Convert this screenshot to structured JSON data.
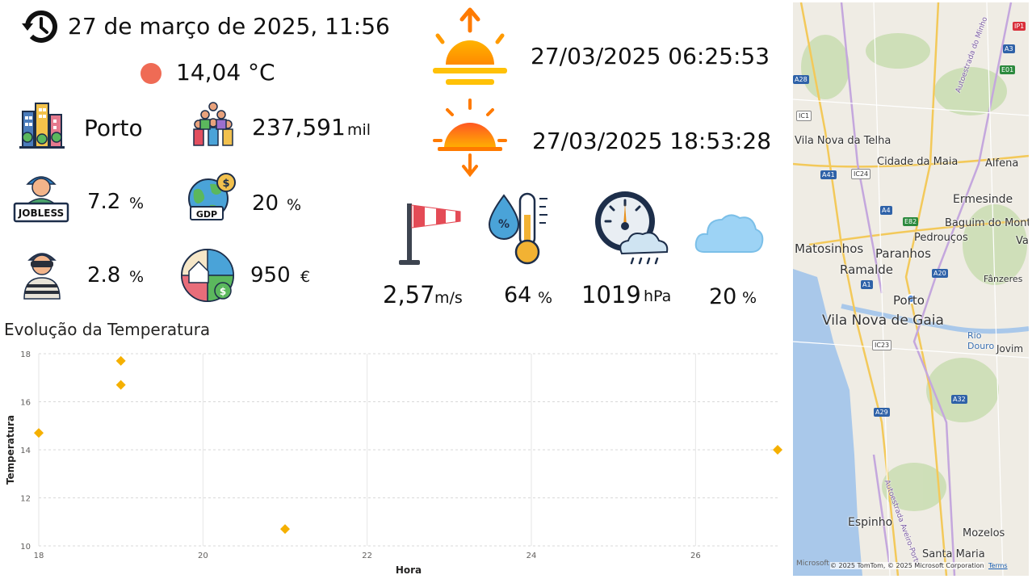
{
  "header": {
    "datetime": "27 de março de 2025, 11:56",
    "temperature": "14,04 °C",
    "temp_dot_color": "#ef6b55"
  },
  "city": {
    "name": "Porto",
    "population": "237,591",
    "population_unit": "mil"
  },
  "indicators": {
    "unemployment": "7.2",
    "unemployment_unit": "%",
    "gdp": "20",
    "gdp_unit": "%",
    "crime": "2.8",
    "crime_unit": "%",
    "cost": "950",
    "cost_unit": "€"
  },
  "sun": {
    "sunrise": "27/03/2025 06:25:53",
    "sunset": "27/03/2025 18:53:28"
  },
  "weather": {
    "wind": "2,57",
    "wind_unit": "m/s",
    "humidity": "64",
    "humidity_unit": "%",
    "pressure": "1019",
    "pressure_unit": "hPa",
    "clouds": "20",
    "clouds_unit": "%"
  },
  "chart_title": "Evolução da Temperatura",
  "chart_data": {
    "type": "scatter",
    "title": "Evolução da Temperatura",
    "xlabel": "Hora",
    "ylabel": "Temperatura",
    "xlim": [
      18,
      27
    ],
    "ylim": [
      10,
      18
    ],
    "xticks": [
      18,
      20,
      22,
      24,
      26
    ],
    "yticks": [
      10,
      12,
      14,
      16,
      18
    ],
    "color": "#f5b000",
    "points": [
      {
        "x": 18,
        "y": 14.7
      },
      {
        "x": 19,
        "y": 17.7
      },
      {
        "x": 19,
        "y": 16.7
      },
      {
        "x": 21,
        "y": 10.7
      },
      {
        "x": 27,
        "y": 14.0
      }
    ]
  },
  "map": {
    "labels": [
      "Vila Nova da Telha",
      "Cidade da Maia",
      "Alfena",
      "Ermesinde",
      "Baguim do Monte",
      "Pedrouços",
      "Matosinhos",
      "Paranhos",
      "Ramalde",
      "Valongo",
      "Fânzeres",
      "Porto",
      "Vila Nova de Gaia",
      "Rio Douro",
      "Jovim",
      "Espinho",
      "Mozelos",
      "Santa Maria",
      "Autoestrada do Minho",
      "Autoestrada Aveiro-Porto"
    ],
    "shields": [
      "A28",
      "A41",
      "A4",
      "A3",
      "A20",
      "A1",
      "A32",
      "A29",
      "E01",
      "E82",
      "IC1",
      "IC24",
      "IC23",
      "IP1"
    ],
    "attribution": "© 2025 TomTom, © 2025 Microsoft Corporation",
    "terms": "Terms",
    "logo": "Microsoft"
  }
}
